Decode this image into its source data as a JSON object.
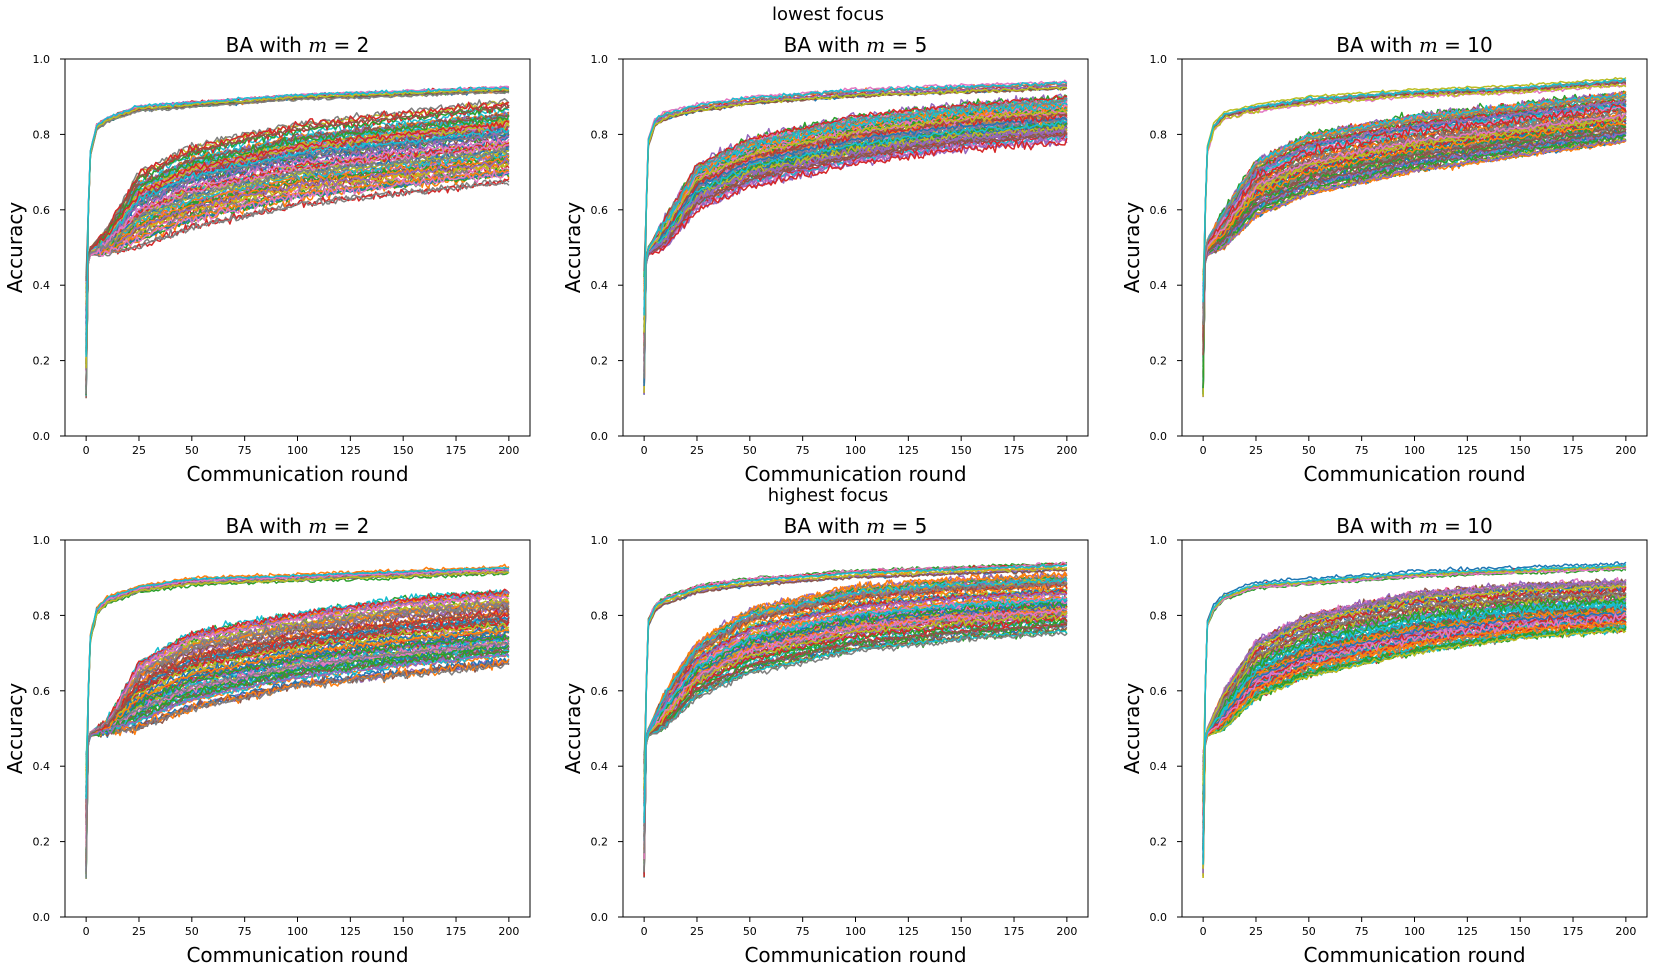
{
  "figure": {
    "row_titles": [
      "lowest focus",
      "highest focus"
    ]
  },
  "colors": {
    "series_palette": [
      "#1f77b4",
      "#ff7f0e",
      "#2ca02c",
      "#d62728",
      "#9467bd",
      "#8c564b",
      "#e377c2",
      "#7f7f7f",
      "#bcbd22",
      "#17becf"
    ]
  },
  "chart_data": [
    {
      "panel": "lowest focus / m=2",
      "type": "line",
      "title": "BA with m = 2",
      "title_prefix": "BA with ",
      "title_var": "m",
      "title_suffix": " = 2",
      "xlabel": "Communication round",
      "ylabel": "Accuracy",
      "xlim": [
        0,
        200
      ],
      "ylim": [
        0.0,
        1.0
      ],
      "xticks": [
        0,
        25,
        50,
        75,
        100,
        125,
        150,
        175,
        200
      ],
      "yticks": [
        0.0,
        0.2,
        0.4,
        0.6,
        0.8,
        1.0
      ],
      "grid": false,
      "n_series": 100,
      "fast_group": {
        "count": 12,
        "x": [
          0,
          2,
          5,
          10,
          25,
          50,
          100,
          150,
          200
        ],
        "y": [
          0.44,
          0.75,
          0.82,
          0.84,
          0.87,
          0.88,
          0.9,
          0.91,
          0.92
        ]
      },
      "slow_group": {
        "count": 88,
        "x": [
          0,
          2,
          10,
          25,
          50,
          100,
          150,
          200
        ],
        "y_low": [
          0.44,
          0.48,
          0.48,
          0.5,
          0.55,
          0.61,
          0.64,
          0.67
        ],
        "y_high": [
          0.44,
          0.5,
          0.55,
          0.7,
          0.77,
          0.83,
          0.86,
          0.89
        ]
      }
    },
    {
      "panel": "lowest focus / m=5",
      "type": "line",
      "title": "BA with m = 5",
      "title_prefix": "BA with ",
      "title_var": "m",
      "title_suffix": " = 5",
      "xlabel": "Communication round",
      "ylabel": "Accuracy",
      "xlim": [
        0,
        200
      ],
      "ylim": [
        0.0,
        1.0
      ],
      "xticks": [
        0,
        25,
        50,
        75,
        100,
        125,
        150,
        175,
        200
      ],
      "yticks": [
        0.0,
        0.2,
        0.4,
        0.6,
        0.8,
        1.0
      ],
      "grid": false,
      "n_series": 100,
      "fast_group": {
        "count": 10,
        "x": [
          0,
          2,
          5,
          10,
          25,
          50,
          100,
          150,
          200
        ],
        "y": [
          0.44,
          0.78,
          0.83,
          0.85,
          0.87,
          0.89,
          0.91,
          0.92,
          0.93
        ]
      },
      "slow_group": {
        "count": 90,
        "x": [
          0,
          2,
          10,
          25,
          50,
          100,
          150,
          200
        ],
        "y_low": [
          0.44,
          0.48,
          0.5,
          0.6,
          0.66,
          0.72,
          0.76,
          0.78
        ],
        "y_high": [
          0.44,
          0.5,
          0.58,
          0.72,
          0.79,
          0.85,
          0.88,
          0.9
        ]
      }
    },
    {
      "panel": "lowest focus / m=10",
      "type": "line",
      "title": "BA with m = 10",
      "title_prefix": "BA with ",
      "title_var": "m",
      "title_suffix": " = 10",
      "xlabel": "Communication round",
      "ylabel": "Accuracy",
      "xlim": [
        0,
        200
      ],
      "ylim": [
        0.0,
        1.0
      ],
      "xticks": [
        0,
        25,
        50,
        75,
        100,
        125,
        150,
        175,
        200
      ],
      "yticks": [
        0.0,
        0.2,
        0.4,
        0.6,
        0.8,
        1.0
      ],
      "grid": false,
      "n_series": 100,
      "fast_group": {
        "count": 12,
        "x": [
          0,
          2,
          5,
          10,
          25,
          50,
          100,
          150,
          200
        ],
        "y": [
          0.44,
          0.76,
          0.82,
          0.85,
          0.87,
          0.89,
          0.91,
          0.92,
          0.94
        ]
      },
      "slow_group": {
        "count": 88,
        "x": [
          0,
          2,
          10,
          25,
          50,
          100,
          150,
          200
        ],
        "y_low": [
          0.44,
          0.48,
          0.5,
          0.58,
          0.64,
          0.7,
          0.74,
          0.78
        ],
        "y_high": [
          0.44,
          0.52,
          0.6,
          0.73,
          0.8,
          0.85,
          0.88,
          0.91
        ]
      }
    },
    {
      "panel": "highest focus / m=2",
      "type": "line",
      "title": "BA with m = 2",
      "title_prefix": "BA with ",
      "title_var": "m",
      "title_suffix": " = 2",
      "xlabel": "Communication round",
      "ylabel": "Accuracy",
      "xlim": [
        0,
        200
      ],
      "ylim": [
        0.0,
        1.0
      ],
      "xticks": [
        0,
        25,
        50,
        75,
        100,
        125,
        150,
        175,
        200
      ],
      "yticks": [
        0.0,
        0.2,
        0.4,
        0.6,
        0.8,
        1.0
      ],
      "grid": false,
      "n_series": 100,
      "fast_group": {
        "count": 12,
        "x": [
          0,
          2,
          5,
          10,
          25,
          50,
          100,
          150,
          200
        ],
        "y": [
          0.44,
          0.74,
          0.81,
          0.84,
          0.87,
          0.89,
          0.9,
          0.91,
          0.92
        ]
      },
      "slow_group": {
        "count": 88,
        "x": [
          0,
          2,
          10,
          25,
          50,
          100,
          150,
          200
        ],
        "y_low": [
          0.44,
          0.48,
          0.49,
          0.5,
          0.55,
          0.61,
          0.64,
          0.67
        ],
        "y_high": [
          0.44,
          0.49,
          0.52,
          0.68,
          0.76,
          0.81,
          0.85,
          0.87
        ]
      }
    },
    {
      "panel": "highest focus / m=5",
      "type": "line",
      "title": "BA with m = 5",
      "title_prefix": "BA with ",
      "title_var": "m",
      "title_suffix": " = 5",
      "xlabel": "Communication round",
      "ylabel": "Accuracy",
      "xlim": [
        0,
        200
      ],
      "ylim": [
        0.0,
        1.0
      ],
      "xticks": [
        0,
        25,
        50,
        75,
        100,
        125,
        150,
        175,
        200
      ],
      "yticks": [
        0.0,
        0.2,
        0.4,
        0.6,
        0.8,
        1.0
      ],
      "grid": false,
      "n_series": 100,
      "fast_group": {
        "count": 10,
        "x": [
          0,
          2,
          5,
          10,
          25,
          50,
          100,
          150,
          200
        ],
        "y": [
          0.44,
          0.78,
          0.82,
          0.84,
          0.87,
          0.89,
          0.91,
          0.92,
          0.93
        ]
      },
      "slow_group": {
        "count": 90,
        "x": [
          0,
          2,
          10,
          25,
          50,
          100,
          150,
          200
        ],
        "y_low": [
          0.44,
          0.48,
          0.5,
          0.58,
          0.64,
          0.7,
          0.73,
          0.75
        ],
        "y_high": [
          0.44,
          0.5,
          0.6,
          0.73,
          0.82,
          0.88,
          0.9,
          0.91
        ]
      }
    },
    {
      "panel": "highest focus / m=10",
      "type": "line",
      "title": "BA with m = 10",
      "title_prefix": "BA with ",
      "title_var": "m",
      "title_suffix": " = 10",
      "xlabel": "Communication round",
      "ylabel": "Accuracy",
      "xlim": [
        0,
        200
      ],
      "ylim": [
        0.0,
        1.0
      ],
      "xticks": [
        0,
        25,
        50,
        75,
        100,
        125,
        150,
        175,
        200
      ],
      "yticks": [
        0.0,
        0.2,
        0.4,
        0.6,
        0.8,
        1.0
      ],
      "grid": false,
      "n_series": 100,
      "fast_group": {
        "count": 10,
        "x": [
          0,
          2,
          5,
          10,
          25,
          50,
          100,
          150,
          200
        ],
        "y": [
          0.44,
          0.78,
          0.82,
          0.85,
          0.88,
          0.89,
          0.91,
          0.92,
          0.93
        ]
      },
      "slow_group": {
        "count": 90,
        "x": [
          0,
          2,
          10,
          25,
          50,
          100,
          150,
          200
        ],
        "y_low": [
          0.44,
          0.48,
          0.5,
          0.58,
          0.64,
          0.7,
          0.74,
          0.76
        ],
        "y_high": [
          0.44,
          0.5,
          0.6,
          0.73,
          0.8,
          0.86,
          0.88,
          0.89
        ]
      }
    }
  ]
}
